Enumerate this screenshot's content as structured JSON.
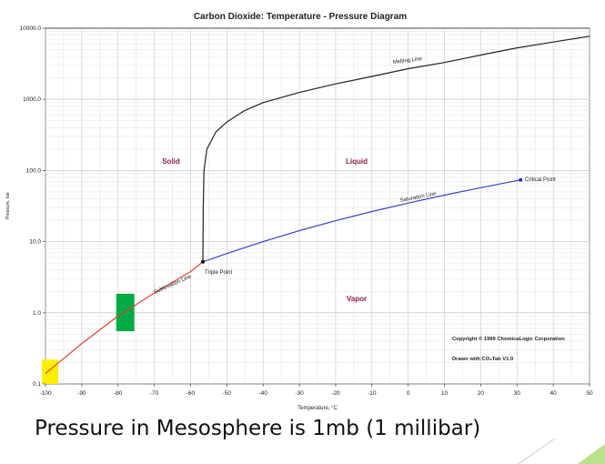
{
  "chart_data": {
    "type": "line",
    "title": "Carbon Dioxide: Temperature - Pressure Diagram",
    "xlabel": "Temperature, °C",
    "ylabel": "Pressure, bar",
    "xlim": [
      -100,
      50
    ],
    "ylim": [
      0.1,
      10000
    ],
    "y_scale": "log",
    "grid": true,
    "x_ticks": [
      "-100",
      "-90",
      "-80",
      "-70",
      "-60",
      "-50",
      "-40",
      "-30",
      "-20",
      "-10",
      "0",
      "10",
      "20",
      "30",
      "40",
      "50"
    ],
    "y_ticks": [
      "0.1",
      "1.0",
      "10.0",
      "100.0",
      "1000.0",
      "10000.0"
    ],
    "series": [
      {
        "name": "Melting Line",
        "color": "#222222",
        "points": [
          [
            -56.6,
            5.2
          ],
          [
            -56.5,
            30
          ],
          [
            -56.3,
            100
          ],
          [
            -55.5,
            200
          ],
          [
            -53,
            350
          ],
          [
            -50,
            480
          ],
          [
            -45,
            700
          ],
          [
            -40,
            900
          ],
          [
            -30,
            1250
          ],
          [
            -20,
            1650
          ],
          [
            -10,
            2100
          ],
          [
            0,
            2700
          ],
          [
            10,
            3300
          ],
          [
            20,
            4200
          ],
          [
            30,
            5300
          ],
          [
            40,
            6400
          ],
          [
            50,
            7700
          ]
        ]
      },
      {
        "name": "Saturation Line",
        "color": "#3344cc",
        "points": [
          [
            -56.6,
            5.2
          ],
          [
            -50,
            6.8
          ],
          [
            -40,
            10
          ],
          [
            -30,
            14.3
          ],
          [
            -20,
            19.7
          ],
          [
            -10,
            26.5
          ],
          [
            0,
            34.9
          ],
          [
            10,
            45
          ],
          [
            20,
            57.3
          ],
          [
            31,
            73.8
          ]
        ]
      },
      {
        "name": "Sublimation Line",
        "color": "#dd4433",
        "points": [
          [
            -100,
            0.14
          ],
          [
            -90,
            0.37
          ],
          [
            -80,
            0.9
          ],
          [
            -78.5,
            1.0
          ],
          [
            -70,
            1.9
          ],
          [
            -60,
            3.8
          ],
          [
            -56.6,
            5.2
          ]
        ]
      }
    ],
    "region_labels": [
      {
        "text": "Solid",
        "x": -75,
        "y": 130
      },
      {
        "text": "Liquid",
        "x": -14,
        "y": 130
      },
      {
        "text": "Vapor",
        "x": -14,
        "y": 1.6
      }
    ],
    "point_labels": [
      {
        "text": "Triple Point",
        "x": -56.6,
        "y": 5.2
      },
      {
        "text": "Critical Point",
        "x": 31,
        "y": 73.8
      }
    ],
    "highlights": [
      {
        "color": "#ffee00",
        "x": [
          -101,
          -96.5
        ],
        "y": [
          0.1,
          0.22
        ]
      },
      {
        "color": "#00aa44",
        "x": [
          -80.5,
          -75.5
        ],
        "y": [
          0.55,
          1.85
        ]
      }
    ],
    "notes": [
      "Copyright © 1999 ChemicaLogic Corporation",
      "Drawn with CO₂Tab V1.0"
    ]
  },
  "caption": "Pressure in Mesosphere is 1mb (1 millibar)",
  "colors": {
    "region_text": "#8b1c4a",
    "accent_green": "#b9e08a"
  }
}
